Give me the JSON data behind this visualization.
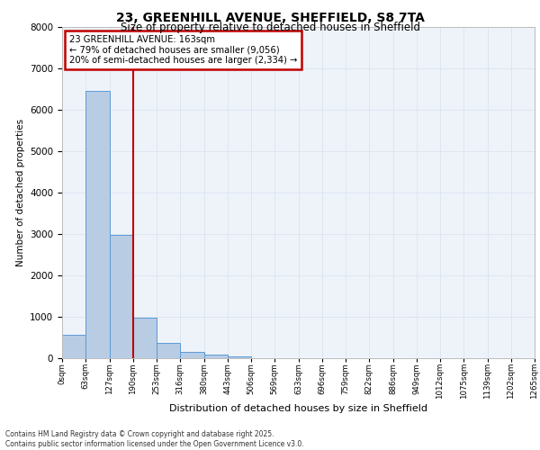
{
  "title_line1": "23, GREENHILL AVENUE, SHEFFIELD, S8 7TA",
  "title_line2": "Size of property relative to detached houses in Sheffield",
  "xlabel": "Distribution of detached houses by size in Sheffield",
  "ylabel": "Number of detached properties",
  "footer_line1": "Contains HM Land Registry data © Crown copyright and database right 2025.",
  "footer_line2": "Contains public sector information licensed under the Open Government Licence v3.0.",
  "annotation_line1": "23 GREENHILL AVENUE: 163sqm",
  "annotation_line2": "← 79% of detached houses are smaller (9,056)",
  "annotation_line3": "20% of semi-detached houses are larger (2,334) →",
  "bar_values": [
    550,
    6450,
    2980,
    960,
    370,
    150,
    70,
    30,
    0,
    0,
    0,
    0,
    0,
    0,
    0,
    0,
    0,
    0,
    0,
    0
  ],
  "bar_color": "#b8cce4",
  "bar_edge_color": "#5b9bd5",
  "x_labels": [
    "0sqm",
    "63sqm",
    "127sqm",
    "190sqm",
    "253sqm",
    "316sqm",
    "380sqm",
    "443sqm",
    "506sqm",
    "569sqm",
    "633sqm",
    "696sqm",
    "759sqm",
    "822sqm",
    "886sqm",
    "949sqm",
    "1012sqm",
    "1075sqm",
    "1139sqm",
    "1202sqm",
    "1265sqm"
  ],
  "ylim": [
    0,
    8000
  ],
  "yticks": [
    0,
    1000,
    2000,
    3000,
    4000,
    5000,
    6000,
    7000,
    8000
  ],
  "vline_color": "#c00000",
  "grid_color": "#dce6f1",
  "bg_color": "#eef3fa",
  "annotation_box_color": "#c00000",
  "vline_position": 2.5
}
